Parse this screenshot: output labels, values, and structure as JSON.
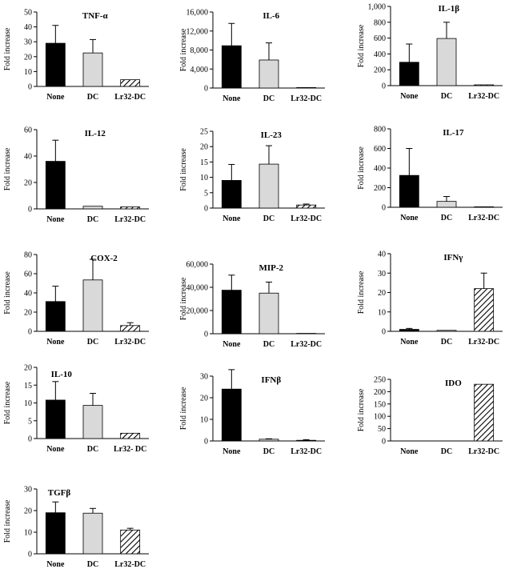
{
  "chart_data": [
    {
      "type": "bar",
      "title": "TNF-α",
      "ylabel": "Fold increase",
      "categories": [
        "None",
        "DC",
        "Lr32-DC"
      ],
      "values": [
        29,
        22.5,
        4.5
      ],
      "errors": [
        12,
        9,
        0
      ],
      "ylim": [
        0,
        50
      ],
      "yticks": [
        0,
        10,
        20,
        30,
        40,
        50
      ],
      "ytick_labels": [
        "0",
        "10",
        "20",
        "30",
        "40",
        "50"
      ]
    },
    {
      "type": "bar",
      "title": "IL-6",
      "ylabel": "Fold increase",
      "categories": [
        "None",
        "DC",
        "Lr32-DC"
      ],
      "values": [
        8900,
        5900,
        100
      ],
      "errors": [
        4700,
        3600,
        0
      ],
      "ylim": [
        0,
        16000
      ],
      "yticks": [
        0,
        4000,
        8000,
        12000,
        16000
      ],
      "ytick_labels": [
        "0",
        "4,000",
        "8,000",
        "12,000",
        "16,000"
      ]
    },
    {
      "type": "bar",
      "title": "IL-1β",
      "ylabel": "Fold increase",
      "categories": [
        "None",
        "DC",
        "Lr32-DC"
      ],
      "values": [
        295,
        595,
        10
      ],
      "errors": [
        230,
        205,
        0
      ],
      "ylim": [
        0,
        1000
      ],
      "yticks": [
        0,
        200,
        400,
        600,
        800,
        1000
      ],
      "ytick_labels": [
        "0",
        "200",
        "400",
        "600",
        "800",
        "1,000"
      ]
    },
    {
      "type": "bar",
      "title": "IL-12",
      "ylabel": "Fold increase",
      "categories": [
        "None",
        "DC",
        "Lr32-DC"
      ],
      "values": [
        36,
        2,
        1.5
      ],
      "errors": [
        16,
        0,
        0
      ],
      "ylim": [
        0,
        60
      ],
      "yticks": [
        0,
        20,
        40,
        60
      ],
      "ytick_labels": [
        "0",
        "20",
        "40",
        "60"
      ]
    },
    {
      "type": "bar",
      "title": "IL-23",
      "ylabel": "Fold increase",
      "categories": [
        "None",
        "DC",
        "Lr32-DC"
      ],
      "values": [
        9,
        14.3,
        1
      ],
      "errors": [
        5.2,
        6,
        0.3
      ],
      "ylim": [
        0,
        25
      ],
      "yticks": [
        0,
        5,
        10,
        15,
        20,
        25
      ],
      "ytick_labels": [
        "0",
        "5",
        "10",
        "15",
        "20",
        "25"
      ]
    },
    {
      "type": "bar",
      "title": "IL-17",
      "ylabel": "Fold increase",
      "categories": [
        "None",
        "DC",
        "Lr32-DC"
      ],
      "values": [
        325,
        60,
        5
      ],
      "errors": [
        275,
        50,
        0
      ],
      "ylim": [
        0,
        800
      ],
      "yticks": [
        0,
        200,
        400,
        600,
        800
      ],
      "ytick_labels": [
        "0",
        "200",
        "400",
        "600",
        "800"
      ]
    },
    {
      "type": "bar",
      "title": "COX-2",
      "ylabel": "Fold increase",
      "categories": [
        "None",
        "DC",
        "Lr32-DC"
      ],
      "values": [
        31,
        53.5,
        6
      ],
      "errors": [
        16,
        21.5,
        3
      ],
      "ylim": [
        0,
        80
      ],
      "yticks": [
        0,
        20,
        40,
        60,
        80
      ],
      "ytick_labels": [
        "0",
        "20",
        "40",
        "60",
        "80"
      ]
    },
    {
      "type": "bar",
      "title": "MIP-2",
      "ylabel": "Fold increase",
      "categories": [
        "None",
        "DC",
        "Lr32-DC"
      ],
      "values": [
        37500,
        35000,
        300
      ],
      "errors": [
        13000,
        9500,
        0
      ],
      "ylim": [
        0,
        60000
      ],
      "yticks": [
        0,
        20000,
        40000,
        60000
      ],
      "ytick_labels": [
        "0",
        "20,000",
        "40,000",
        "60,000"
      ]
    },
    {
      "type": "bar",
      "title": "IFNγ",
      "ylabel": "Fold increase",
      "categories": [
        "None",
        "DC",
        "Lr32-DC"
      ],
      "values": [
        1,
        0.5,
        22
      ],
      "errors": [
        0.5,
        0,
        8
      ],
      "ylim": [
        0,
        40
      ],
      "yticks": [
        0,
        10,
        20,
        30,
        40
      ],
      "ytick_labels": [
        "0",
        "10",
        "20",
        "30",
        "40"
      ]
    },
    {
      "type": "bar",
      "title": "IL-10",
      "ylabel": "Fold increase",
      "categories": [
        "None",
        "DC",
        "Lr32- DC"
      ],
      "values": [
        10.8,
        9.3,
        1.5
      ],
      "errors": [
        5.2,
        3.4,
        0
      ],
      "ylim": [
        0,
        20
      ],
      "yticks": [
        0,
        5,
        10,
        15,
        20
      ],
      "ytick_labels": [
        "0",
        "5",
        "10",
        "15",
        "20"
      ]
    },
    {
      "type": "bar",
      "title": "IFNβ",
      "ylabel": "Fold increase",
      "categories": [
        "None",
        "DC",
        "Lr32-DC"
      ],
      "values": [
        24,
        0.8,
        0.3
      ],
      "errors": [
        9,
        0.2,
        0.3
      ],
      "ylim": [
        0,
        30
      ],
      "yticks": [
        0,
        10,
        20,
        30
      ],
      "ytick_labels": [
        "0",
        "10",
        "20",
        "30"
      ]
    },
    {
      "type": "bar",
      "title": "IDO",
      "ylabel": "Fold increase",
      "categories": [
        "None",
        "DC",
        "Lr32-DC"
      ],
      "values": [
        0,
        0,
        230
      ],
      "errors": [
        0,
        0,
        0
      ],
      "ylim": [
        0,
        250
      ],
      "yticks": [
        0,
        50,
        100,
        150,
        200,
        250
      ],
      "ytick_labels": [
        "0",
        "50",
        "100",
        "150",
        "200",
        "250"
      ]
    },
    {
      "type": "bar",
      "title": "TGFβ",
      "ylabel": "Fold increase",
      "categories": [
        "None",
        "DC",
        "Lr32-DC"
      ],
      "values": [
        19,
        18.8,
        11
      ],
      "errors": [
        5,
        2.2,
        0.8
      ],
      "ylim": [
        0,
        30
      ],
      "yticks": [
        0,
        10,
        20,
        30
      ],
      "ytick_labels": [
        "0",
        "10",
        "20",
        "30"
      ]
    }
  ],
  "colors": {
    "none": "#000000",
    "dc": "#d9d9d9",
    "lr32": "hatch-diagonal",
    "axis": "#000000"
  }
}
